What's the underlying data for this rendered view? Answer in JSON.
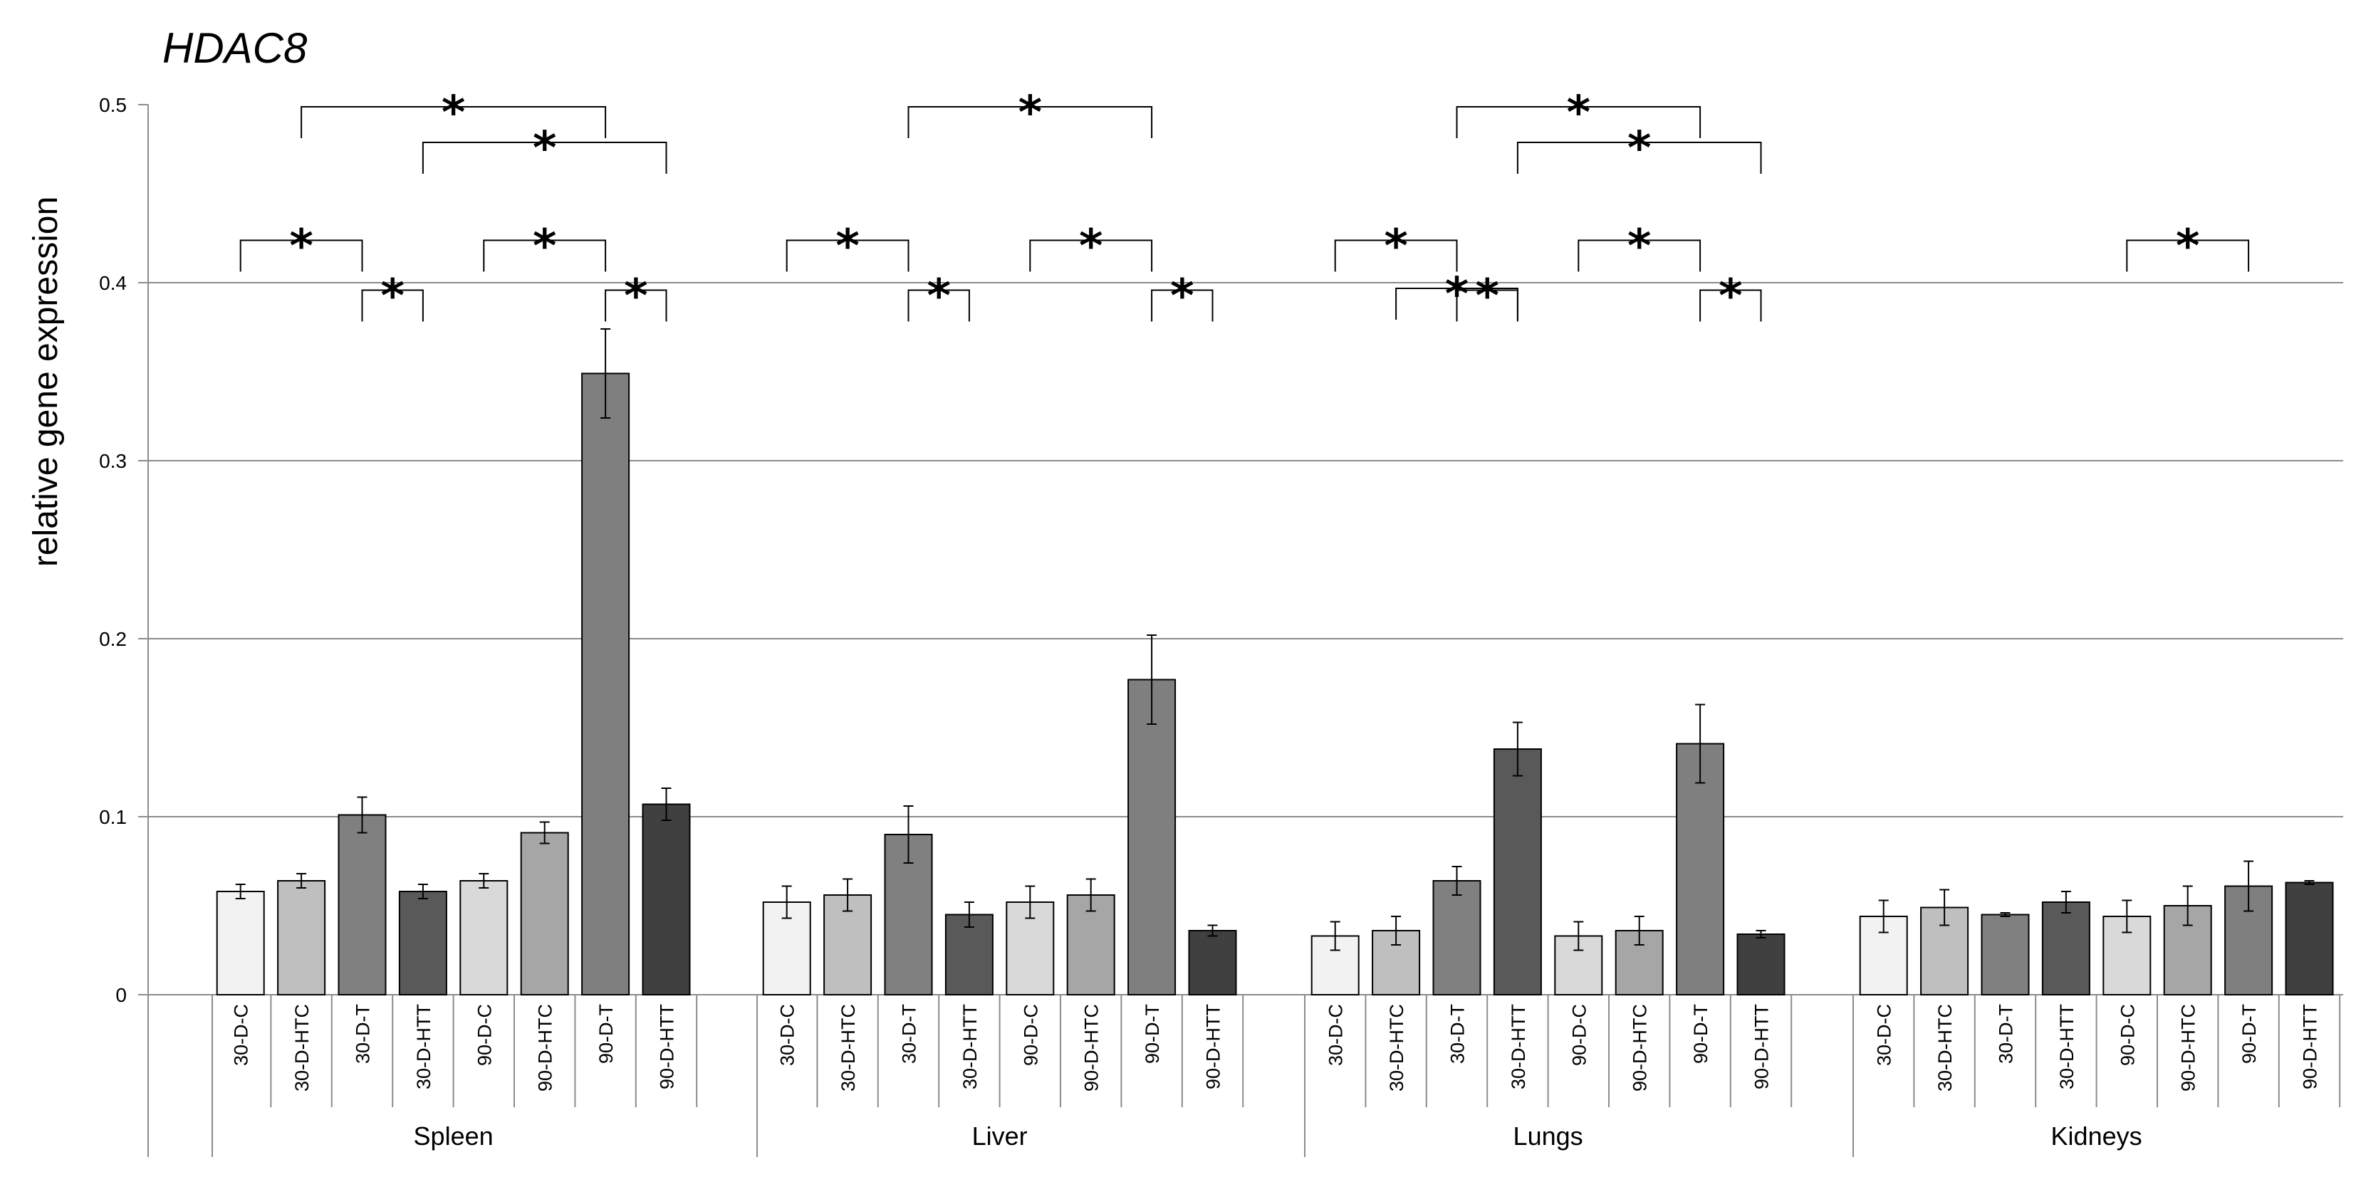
{
  "chart_data": {
    "type": "bar",
    "title": "HDAC8",
    "ylabel": "relative  gene  expression",
    "xlabel": "",
    "ylim": [
      0,
      0.5
    ],
    "yticks": [
      "0",
      "0.1",
      "0.2",
      "0.3",
      "0.4",
      "0.5"
    ],
    "grid": "horizontal",
    "categories": [
      "30-D-C",
      "30-D-HTC",
      "30-D-T",
      "30-D-HTT",
      "90-D-C",
      "90-D-HTC",
      "90-D-T",
      "90-D-HTT"
    ],
    "category_colors": [
      "#f2f2f2",
      "#bfbfbf",
      "#808080",
      "#595959",
      "#d9d9d9",
      "#a6a6a6",
      "#7f7f7f",
      "#404040"
    ],
    "significance_marker": "*",
    "groups": [
      {
        "name": "Spleen",
        "values": [
          0.058,
          0.064,
          0.101,
          0.058,
          0.064,
          0.091,
          0.349,
          0.107
        ],
        "errors": [
          0.004,
          0.004,
          0.01,
          0.004,
          0.004,
          0.006,
          0.025,
          0.009
        ],
        "brackets": [
          {
            "from": 1,
            "to": 6,
            "level": 0.5
          },
          {
            "from": 3,
            "to": 7,
            "level": 0.48
          },
          {
            "from": 0,
            "to": 2,
            "level": 0.425
          },
          {
            "from": 4,
            "to": 6,
            "level": 0.425
          },
          {
            "from": 2,
            "to": 3,
            "level": 0.397
          },
          {
            "from": 6,
            "to": 7,
            "level": 0.397
          }
        ]
      },
      {
        "name": "Liver",
        "values": [
          0.052,
          0.056,
          0.09,
          0.045,
          0.052,
          0.056,
          0.177,
          0.036
        ],
        "errors": [
          0.009,
          0.009,
          0.016,
          0.007,
          0.009,
          0.009,
          0.025,
          0.003
        ],
        "brackets": [
          {
            "from": 2,
            "to": 6,
            "level": 0.5
          },
          {
            "from": 0,
            "to": 2,
            "level": 0.425
          },
          {
            "from": 4,
            "to": 6,
            "level": 0.425
          },
          {
            "from": 2,
            "to": 3,
            "level": 0.397
          },
          {
            "from": 6,
            "to": 7,
            "level": 0.397
          }
        ]
      },
      {
        "name": "Lungs",
        "values": [
          0.033,
          0.036,
          0.064,
          0.138,
          0.033,
          0.036,
          0.141,
          0.034
        ],
        "errors": [
          0.008,
          0.008,
          0.008,
          0.015,
          0.008,
          0.008,
          0.022,
          0.002
        ],
        "brackets": [
          {
            "from": 2,
            "to": 6,
            "level": 0.5
          },
          {
            "from": 3,
            "to": 7,
            "level": 0.48
          },
          {
            "from": 0,
            "to": 2,
            "level": 0.425
          },
          {
            "from": 4,
            "to": 6,
            "level": 0.425
          },
          {
            "from": 1,
            "to": 3,
            "level": 0.398
          },
          {
            "from": 2,
            "to": 3,
            "level": 0.397
          },
          {
            "from": 6,
            "to": 7,
            "level": 0.397
          }
        ]
      },
      {
        "name": "Kidneys",
        "values": [
          0.044,
          0.049,
          0.045,
          0.052,
          0.044,
          0.05,
          0.061,
          0.063
        ],
        "errors": [
          0.009,
          0.01,
          0.001,
          0.006,
          0.009,
          0.011,
          0.014,
          0.001
        ],
        "brackets": [
          {
            "from": 4,
            "to": 6,
            "level": 0.425
          }
        ]
      }
    ]
  }
}
